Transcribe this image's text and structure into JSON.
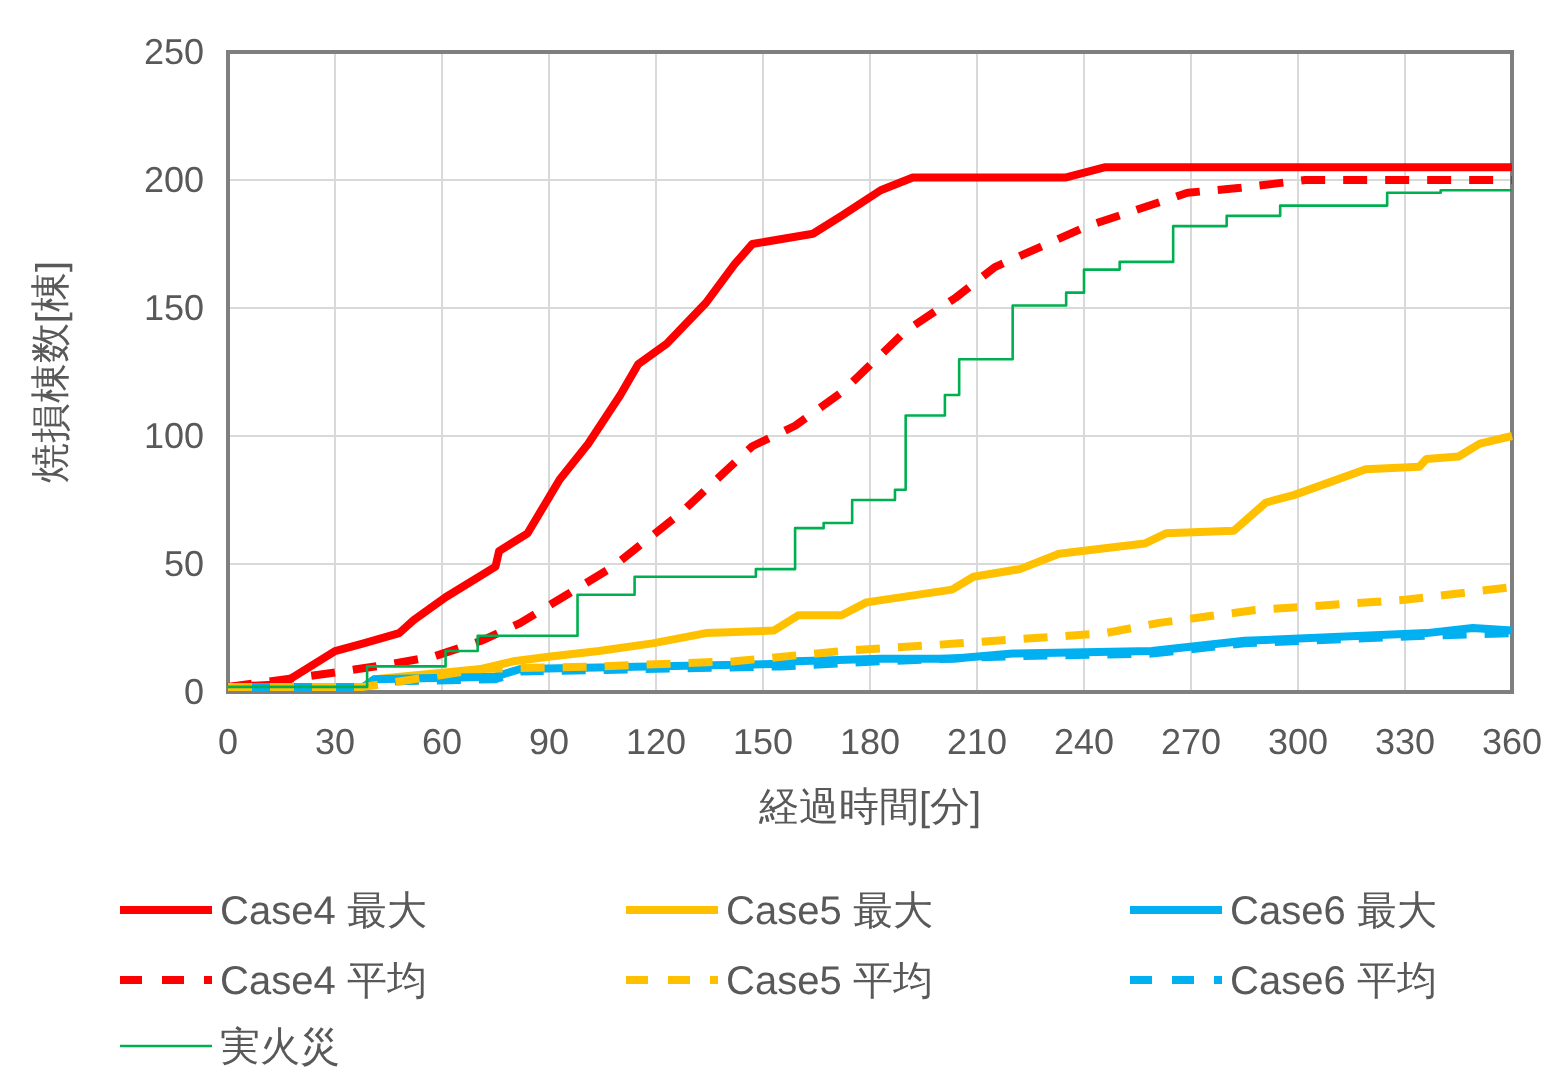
{
  "chart_data": {
    "type": "line",
    "xlabel": "経過時間[分]",
    "ylabel": "焼損棟数[棟]",
    "xlim": [
      0,
      360
    ],
    "ylim": [
      0,
      250
    ],
    "xticks": [
      0,
      30,
      60,
      90,
      120,
      150,
      180,
      210,
      240,
      270,
      300,
      330,
      360
    ],
    "yticks": [
      0,
      50,
      100,
      150,
      200,
      250
    ],
    "grid": true,
    "legend": "bottom",
    "series": [
      {
        "name": "Case4 最大",
        "color": "#ff0000",
        "line_style": "solid",
        "x": [
          0,
          15,
          30,
          38,
          48,
          52,
          61,
          75,
          76,
          84,
          93,
          101,
          110,
          115,
          123,
          134,
          142,
          147,
          164,
          172,
          183,
          192,
          235,
          246,
          360
        ],
        "values": [
          2,
          3,
          16,
          19,
          23,
          28,
          37,
          49,
          55,
          62,
          83,
          97,
          116,
          128,
          136,
          152,
          167,
          175,
          179,
          186,
          196,
          201,
          201,
          205,
          205
        ]
      },
      {
        "name": "Case5 最大",
        "color": "#ffc000",
        "line_style": "solid",
        "x": [
          0,
          38,
          41,
          71,
          80,
          91,
          104,
          119,
          134,
          153,
          160,
          172,
          179,
          203,
          209,
          222,
          233,
          257,
          263,
          282,
          291,
          299,
          319,
          334,
          336,
          345,
          351,
          360
        ],
        "values": [
          2,
          2,
          5,
          9,
          12,
          14,
          16,
          19,
          23,
          24,
          30,
          30,
          35,
          40,
          45,
          48,
          54,
          58,
          62,
          63,
          74,
          77,
          87,
          88,
          91,
          92,
          97,
          100
        ]
      },
      {
        "name": "Case6 平均",
        "color": "#00b0f0",
        "line_style": "dashed",
        "x": [
          0,
          38,
          41,
          75,
          82,
          155,
          183,
          220,
          259,
          285,
          336,
          360
        ],
        "values": [
          2,
          2,
          4,
          5,
          8,
          10,
          12,
          14,
          15,
          19,
          22,
          23
        ]
      },
      {
        "name": "Case6 最大",
        "color": "#00b0f0",
        "line_style": "solid",
        "x": [
          0,
          38,
          41,
          75,
          82,
          155,
          159,
          183,
          203,
          220,
          259,
          285,
          336,
          349,
          360
        ],
        "values": [
          2,
          2,
          5,
          6,
          9,
          11,
          12,
          13,
          13,
          15,
          16,
          20,
          23,
          25,
          24
        ]
      },
      {
        "name": "Case4 平均",
        "color": "#ff0000",
        "line_style": "dashed",
        "x": [
          0,
          27,
          46,
          58,
          71,
          82,
          95,
          108,
          127,
          147,
          159,
          172,
          190,
          204,
          215,
          228,
          241,
          254,
          269,
          284,
          302,
          360
        ],
        "values": [
          2,
          7,
          11,
          14,
          20,
          27,
          38,
          49,
          70,
          96,
          104,
          117,
          141,
          154,
          166,
          174,
          182,
          188,
          195,
          197,
          200,
          200
        ]
      },
      {
        "name": "Case5 平均",
        "color": "#ffc000",
        "line_style": "dashed",
        "x": [
          0,
          38,
          71,
          104,
          142,
          172,
          205,
          246,
          261,
          288,
          330,
          360
        ],
        "values": [
          2,
          2,
          9,
          10,
          12,
          16,
          19,
          23,
          27,
          32,
          36,
          41
        ]
      },
      {
        "name": "実火災",
        "color": "#00b050",
        "type": "step",
        "line_style": "solid",
        "x": [
          0,
          39,
          61,
          70,
          98,
          114,
          148,
          159,
          167,
          175,
          187,
          190,
          201,
          205,
          220,
          235,
          240,
          250,
          265,
          280,
          295,
          325,
          340,
          360
        ],
        "values": [
          2,
          10,
          16,
          22,
          38,
          45,
          48,
          64,
          66,
          75,
          79,
          108,
          116,
          130,
          151,
          156,
          165,
          168,
          182,
          186,
          190,
          195,
          196,
          196
        ]
      }
    ]
  }
}
